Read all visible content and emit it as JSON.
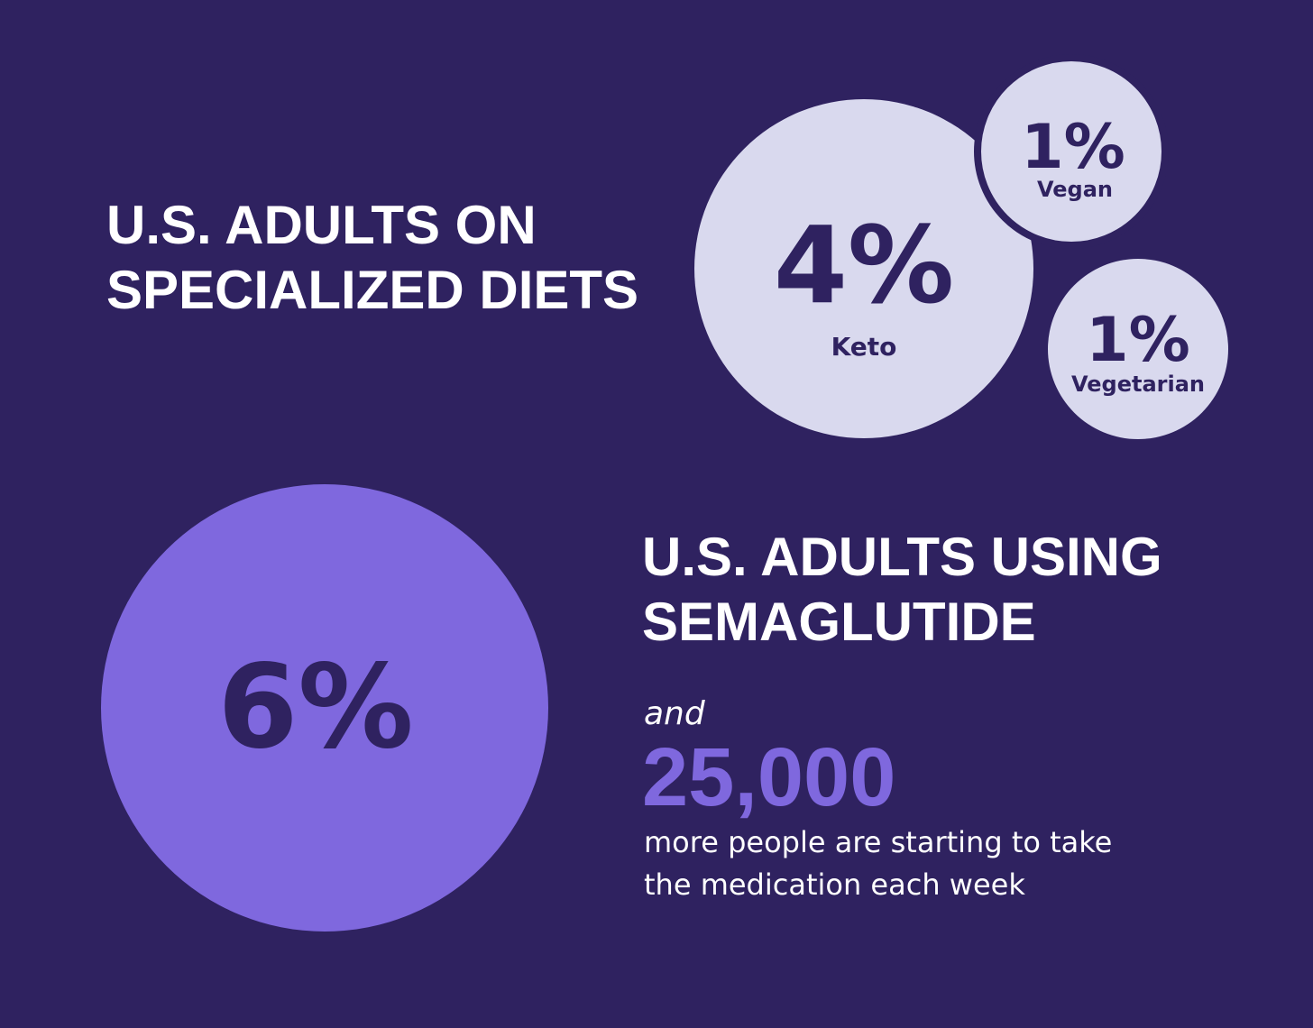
{
  "diets": {
    "title": [
      "U.S. ADULTS ON",
      "SPECIALIZED DIETS"
    ],
    "items": [
      {
        "value": "4%",
        "label": "Keto"
      },
      {
        "value": "1%",
        "label": "Vegan"
      },
      {
        "value": "1%",
        "label": "Vegetarian"
      }
    ]
  },
  "semaglutide": {
    "value": "6%",
    "title": [
      "U.S. ADULTS USING",
      "SEMAGLUTIDE"
    ],
    "connector": "and",
    "count": "25,000",
    "description": [
      "more people are starting to take",
      "the medication each week"
    ]
  }
}
